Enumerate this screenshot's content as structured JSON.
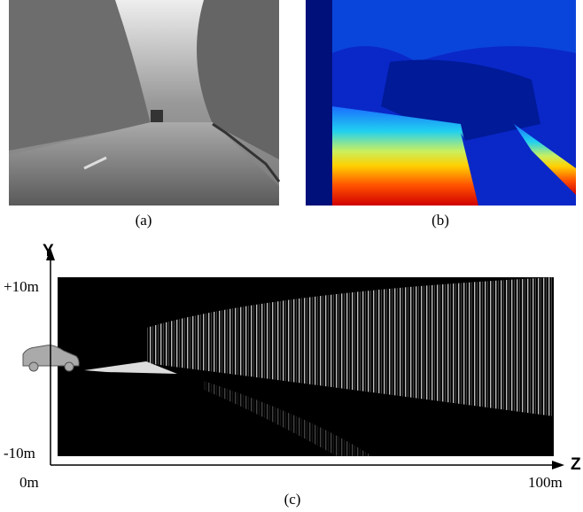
{
  "panels": {
    "a": {
      "caption": "(a)"
    },
    "b": {
      "caption": "(b)"
    }
  },
  "plot": {
    "y_axis": "Y",
    "z_axis": "Z",
    "y_max": "+10m",
    "y_min": "-10m",
    "z_min": "0m",
    "z_max": "100m",
    "caption": "(c)"
  }
}
